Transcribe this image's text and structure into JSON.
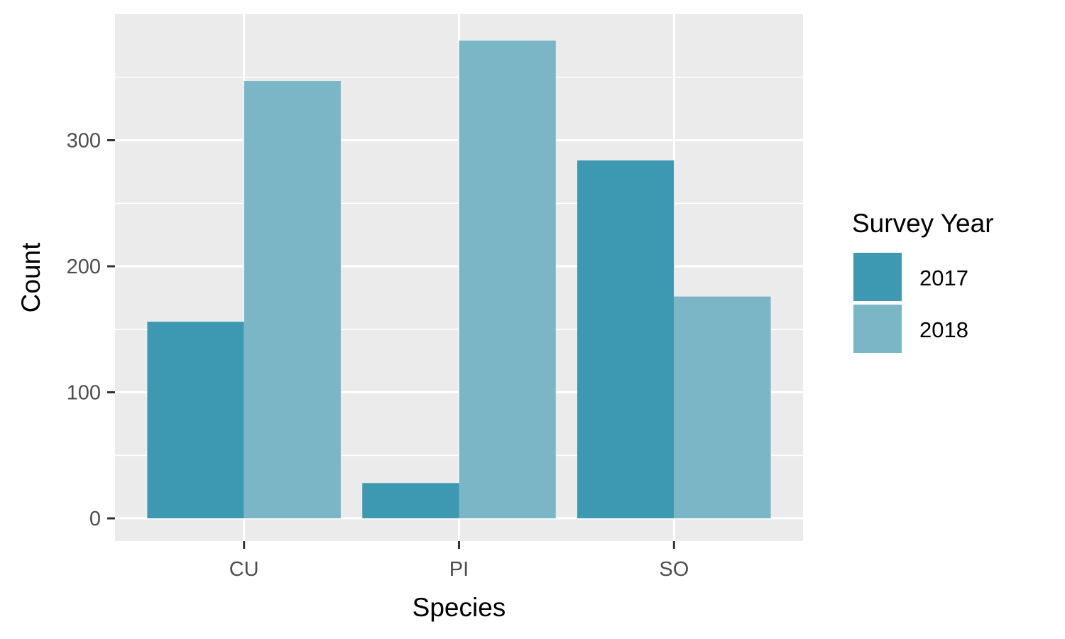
{
  "chart_data": {
    "type": "bar",
    "categories": [
      "CU",
      "PI",
      "SO"
    ],
    "series": [
      {
        "name": "2017",
        "values": [
          156,
          28,
          284
        ],
        "color": "#3d99b1"
      },
      {
        "name": "2018",
        "values": [
          347,
          379,
          176
        ],
        "color": "#7ab6c6"
      }
    ],
    "xlabel": "Species",
    "ylabel": "Count",
    "ylim": [
      -18,
      400
    ],
    "yticks": [
      0,
      100,
      200,
      300
    ],
    "grid": true,
    "legend": {
      "title": "Survey Year",
      "position": "right"
    },
    "panel_background": "#ebebeb"
  }
}
